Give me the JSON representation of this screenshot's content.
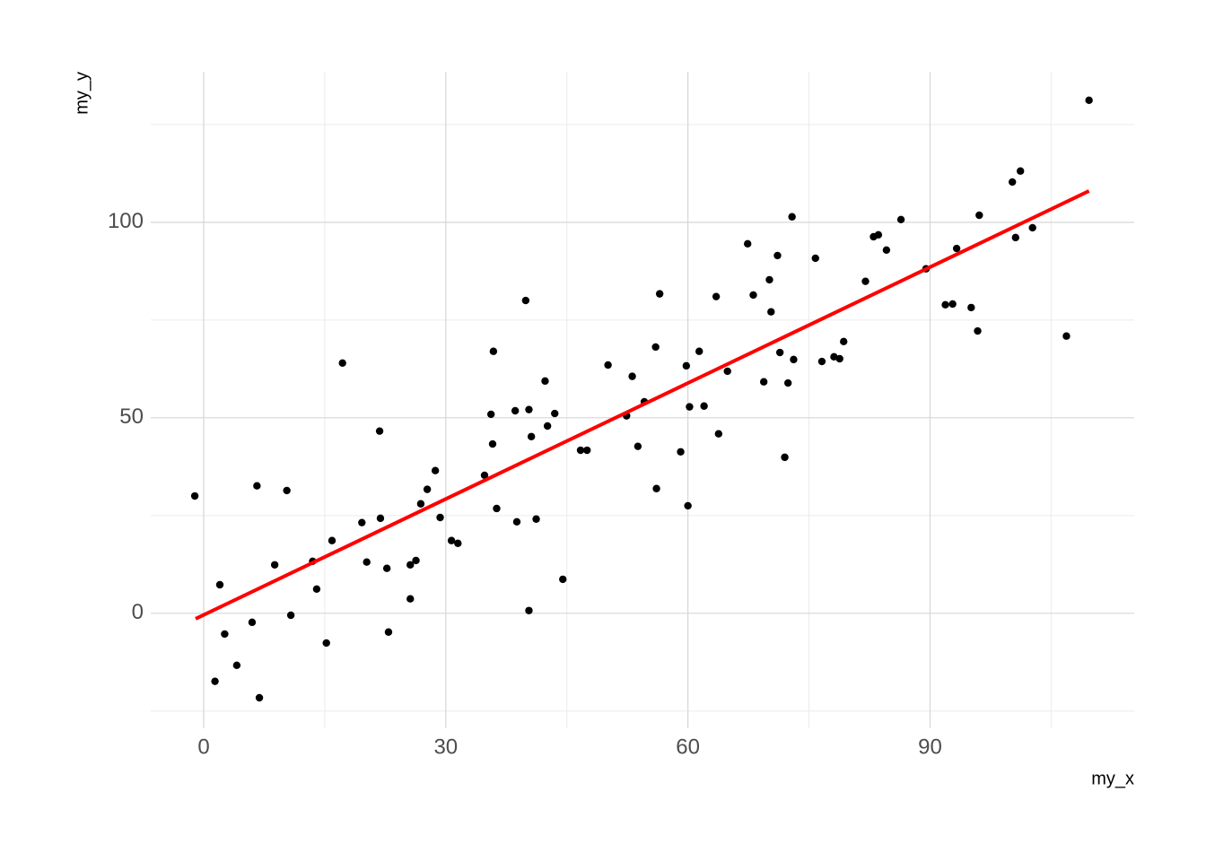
{
  "chart_data": {
    "type": "scatter",
    "x_label": "my_x",
    "y_label": "my_y",
    "xlim": [
      -6.56,
      115.3
    ],
    "ylim": [
      -29.4,
      138.5
    ],
    "xticks": [
      0,
      30,
      60,
      90
    ],
    "yticks": [
      0,
      50,
      100
    ],
    "xminor_ticks": [
      15,
      45,
      75,
      105
    ],
    "yminor_ticks": [
      -25,
      25,
      75,
      125
    ],
    "grid": true,
    "point_color": "#000000",
    "x": [
      -1.1,
      2.0,
      1.4,
      2.6,
      4.1,
      6.0,
      6.6,
      6.9,
      8.8,
      10.3,
      10.8,
      13.5,
      14.0,
      15.2,
      15.9,
      17.2,
      19.6,
      20.2,
      21.9,
      21.8,
      22.7,
      22.9,
      25.6,
      25.6,
      26.3,
      26.9,
      27.7,
      28.7,
      29.3,
      30.7,
      31.5,
      34.8,
      35.6,
      35.8,
      35.9,
      36.3,
      38.6,
      38.8,
      39.9,
      40.3,
      40.3,
      40.6,
      41.2,
      42.3,
      42.6,
      43.5,
      44.5,
      46.7,
      47.5,
      50.1,
      52.4,
      53.1,
      53.8,
      54.6,
      56.0,
      56.1,
      56.5,
      59.1,
      59.8,
      60.0,
      60.2,
      61.4,
      62.0,
      63.5,
      63.8,
      64.9,
      67.4,
      68.1,
      69.4,
      70.1,
      70.3,
      71.1,
      71.4,
      72.0,
      72.4,
      72.9,
      73.1,
      75.8,
      76.6,
      78.1,
      78.8,
      79.3,
      82.0,
      83.0,
      83.6,
      84.6,
      86.4,
      89.5,
      91.9,
      92.8,
      93.3,
      95.1,
      95.9,
      96.1,
      100.2,
      100.6,
      101.2,
      102.7,
      106.9,
      109.7
    ],
    "values": [
      30.0,
      7.3,
      -17.4,
      -5.3,
      -13.3,
      -2.3,
      32.6,
      -21.6,
      12.4,
      31.4,
      -0.5,
      13.3,
      6.2,
      -7.6,
      18.6,
      64.0,
      23.2,
      13.1,
      24.3,
      46.6,
      11.5,
      -4.8,
      3.7,
      12.4,
      13.5,
      28.0,
      31.7,
      36.5,
      24.5,
      18.6,
      17.9,
      35.3,
      50.9,
      43.3,
      67.0,
      26.8,
      51.8,
      23.4,
      80.0,
      52.1,
      0.7,
      45.2,
      24.1,
      59.4,
      47.9,
      51.1,
      8.7,
      41.7,
      41.7,
      63.5,
      50.5,
      60.6,
      42.7,
      54.1,
      68.1,
      31.9,
      81.7,
      41.3,
      63.3,
      27.5,
      52.8,
      67.0,
      53.0,
      81.0,
      45.9,
      61.9,
      94.5,
      81.4,
      59.2,
      85.3,
      77.1,
      91.5,
      66.7,
      39.9,
      58.9,
      101.4,
      64.9,
      90.8,
      64.4,
      65.6,
      65.1,
      69.5,
      84.9,
      96.3,
      96.8,
      92.9,
      100.7,
      88.1,
      78.9,
      79.1,
      93.3,
      78.2,
      72.2,
      101.8,
      110.3,
      96.1,
      113.1,
      98.6,
      70.9,
      131.2
    ],
    "fit": {
      "color": "#ff0000",
      "x": [
        -1.0,
        109.7
      ],
      "values": [
        -1.4,
        108.0
      ]
    }
  }
}
